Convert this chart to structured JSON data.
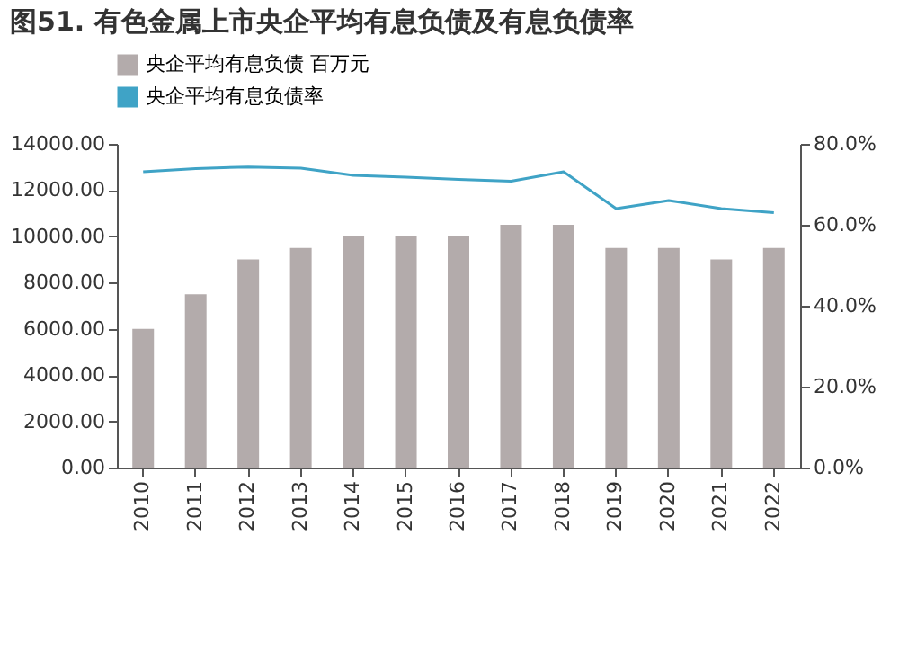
{
  "chart_data": {
    "type": "bar",
    "title": "图51. 有色金属上市央企平均有息负债及有息负债率",
    "categories": [
      "2010",
      "2011",
      "2012",
      "2013",
      "2014",
      "2015",
      "2016",
      "2017",
      "2018",
      "2019",
      "2020",
      "2021",
      "2022"
    ],
    "series": [
      {
        "name": "央企平均有息负债  百万元",
        "color": "#b3abab",
        "values": [
          6000,
          7500,
          9000,
          9500,
          10000,
          10000,
          10000,
          10500,
          10500,
          9500,
          9500,
          9000,
          9500
        ]
      },
      {
        "name": "央企平均有息负债率",
        "type": "line",
        "axis": "y2",
        "color": "#3fa3c6",
        "values": [
          73.1,
          73.9,
          74.3,
          74.0,
          72.2,
          71.8,
          71.2,
          70.8,
          73.1,
          64.0,
          66.0,
          64.0,
          63.0
        ]
      }
    ],
    "ylim": [
      0,
      14000
    ],
    "yticks": [
      {
        "value": 0,
        "label": "0.00"
      },
      {
        "value": 2000,
        "label": "2000.00"
      },
      {
        "value": 4000,
        "label": "4000.00"
      },
      {
        "value": 6000,
        "label": "6000.00"
      },
      {
        "value": 8000,
        "label": "8000.00"
      },
      {
        "value": 10000,
        "label": "10000.00"
      },
      {
        "value": 12000,
        "label": "12000.00"
      },
      {
        "value": 14000,
        "label": "14000.00"
      }
    ],
    "y2lim": [
      0,
      80
    ],
    "y2ticks": [
      {
        "value": 0,
        "label": "0.0%"
      },
      {
        "value": 20,
        "label": "20.0%"
      },
      {
        "value": 40,
        "label": "40.0%"
      },
      {
        "value": 60,
        "label": "60.0%"
      },
      {
        "value": 80,
        "label": "80.0%"
      }
    ],
    "legend": "top",
    "grid": false
  }
}
